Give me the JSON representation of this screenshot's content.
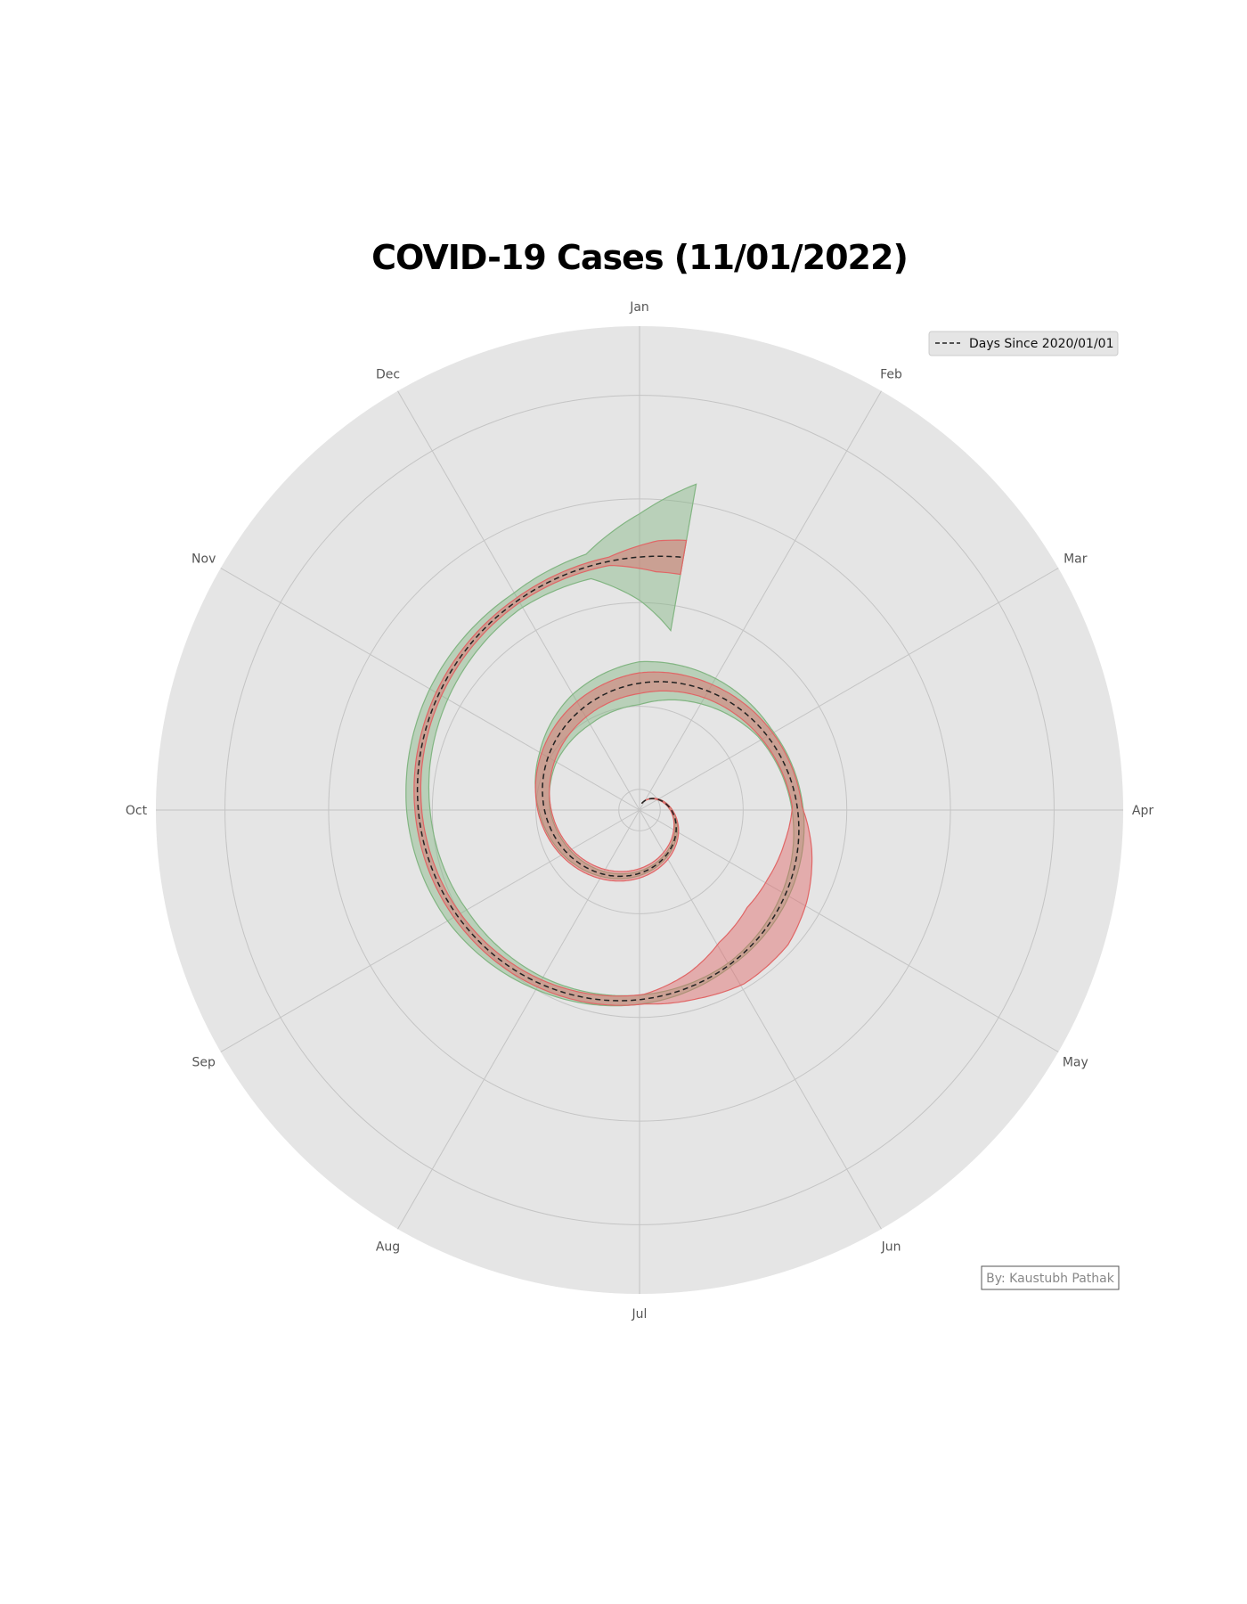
{
  "chart_data": {
    "type": "polar-spiral",
    "title": "COVID-19 Cases (11/01/2022)",
    "angular_axis": {
      "ticks": [
        "Jan",
        "Feb",
        "Mar",
        "Apr",
        "May",
        "Jun",
        "Jul",
        "Aug",
        "Sep",
        "Oct",
        "Nov",
        "Dec"
      ]
    },
    "radial_axis": {
      "range": [
        0,
        1400
      ],
      "gridlines": [
        60,
        300,
        600,
        900,
        1200
      ],
      "tick_labels_shown": false
    },
    "grid": true,
    "legend": {
      "placement": "top-right",
      "entries": [
        {
          "label": "Days Since 2020/01/01",
          "style": "dashed",
          "color": "#222222"
        }
      ]
    },
    "credit": "By: Kaustubh Pathak",
    "series": [
      {
        "role": "spiral-baseline",
        "color": "#222222",
        "x": [
          "2020-01-20",
          "2020-06-01",
          "2020-12-31",
          "2021-06-01",
          "2021-12-31",
          "2022-01-11"
        ],
        "y": [
          20,
          152,
          366,
          517,
          731,
          742
        ]
      },
      {
        "role": "band",
        "color": "#e06666",
        "x": [
          "2020-01-20",
          "2020-04-01",
          "2020-04-15",
          "2020-05-01",
          "2020-06-01",
          "2020-08-01",
          "2020-11-01",
          "2021-01-01",
          "2021-02-01",
          "2021-04-01",
          "2021-04-15",
          "2021-05-01",
          "2021-05-15",
          "2021-06-01",
          "2021-06-15",
          "2021-07-01",
          "2021-08-01",
          "2021-10-01",
          "2021-12-01",
          "2021-12-25",
          "2022-01-05",
          "2022-01-11"
        ],
        "y": [
          0,
          3,
          5,
          8,
          12,
          15,
          22,
          30,
          22,
          14,
          40,
          65,
          80,
          70,
          40,
          14,
          12,
          10,
          8,
          12,
          45,
          50
        ]
      },
      {
        "role": "band",
        "color": "#82b582",
        "x": [
          "2020-01-20",
          "2020-04-01",
          "2020-06-01",
          "2020-08-01",
          "2020-10-01",
          "2020-11-01",
          "2020-12-01",
          "2021-01-01",
          "2021-02-01",
          "2021-03-01",
          "2021-06-01",
          "2021-08-01",
          "2021-09-01",
          "2021-10-01",
          "2021-11-01",
          "2021-12-01",
          "2021-12-20",
          "2022-01-01",
          "2022-01-11"
        ],
        "y": [
          0,
          3,
          5,
          8,
          16,
          28,
          50,
          62,
          42,
          22,
          6,
          20,
          32,
          34,
          30,
          24,
          36,
          125,
          215
        ]
      }
    ]
  }
}
